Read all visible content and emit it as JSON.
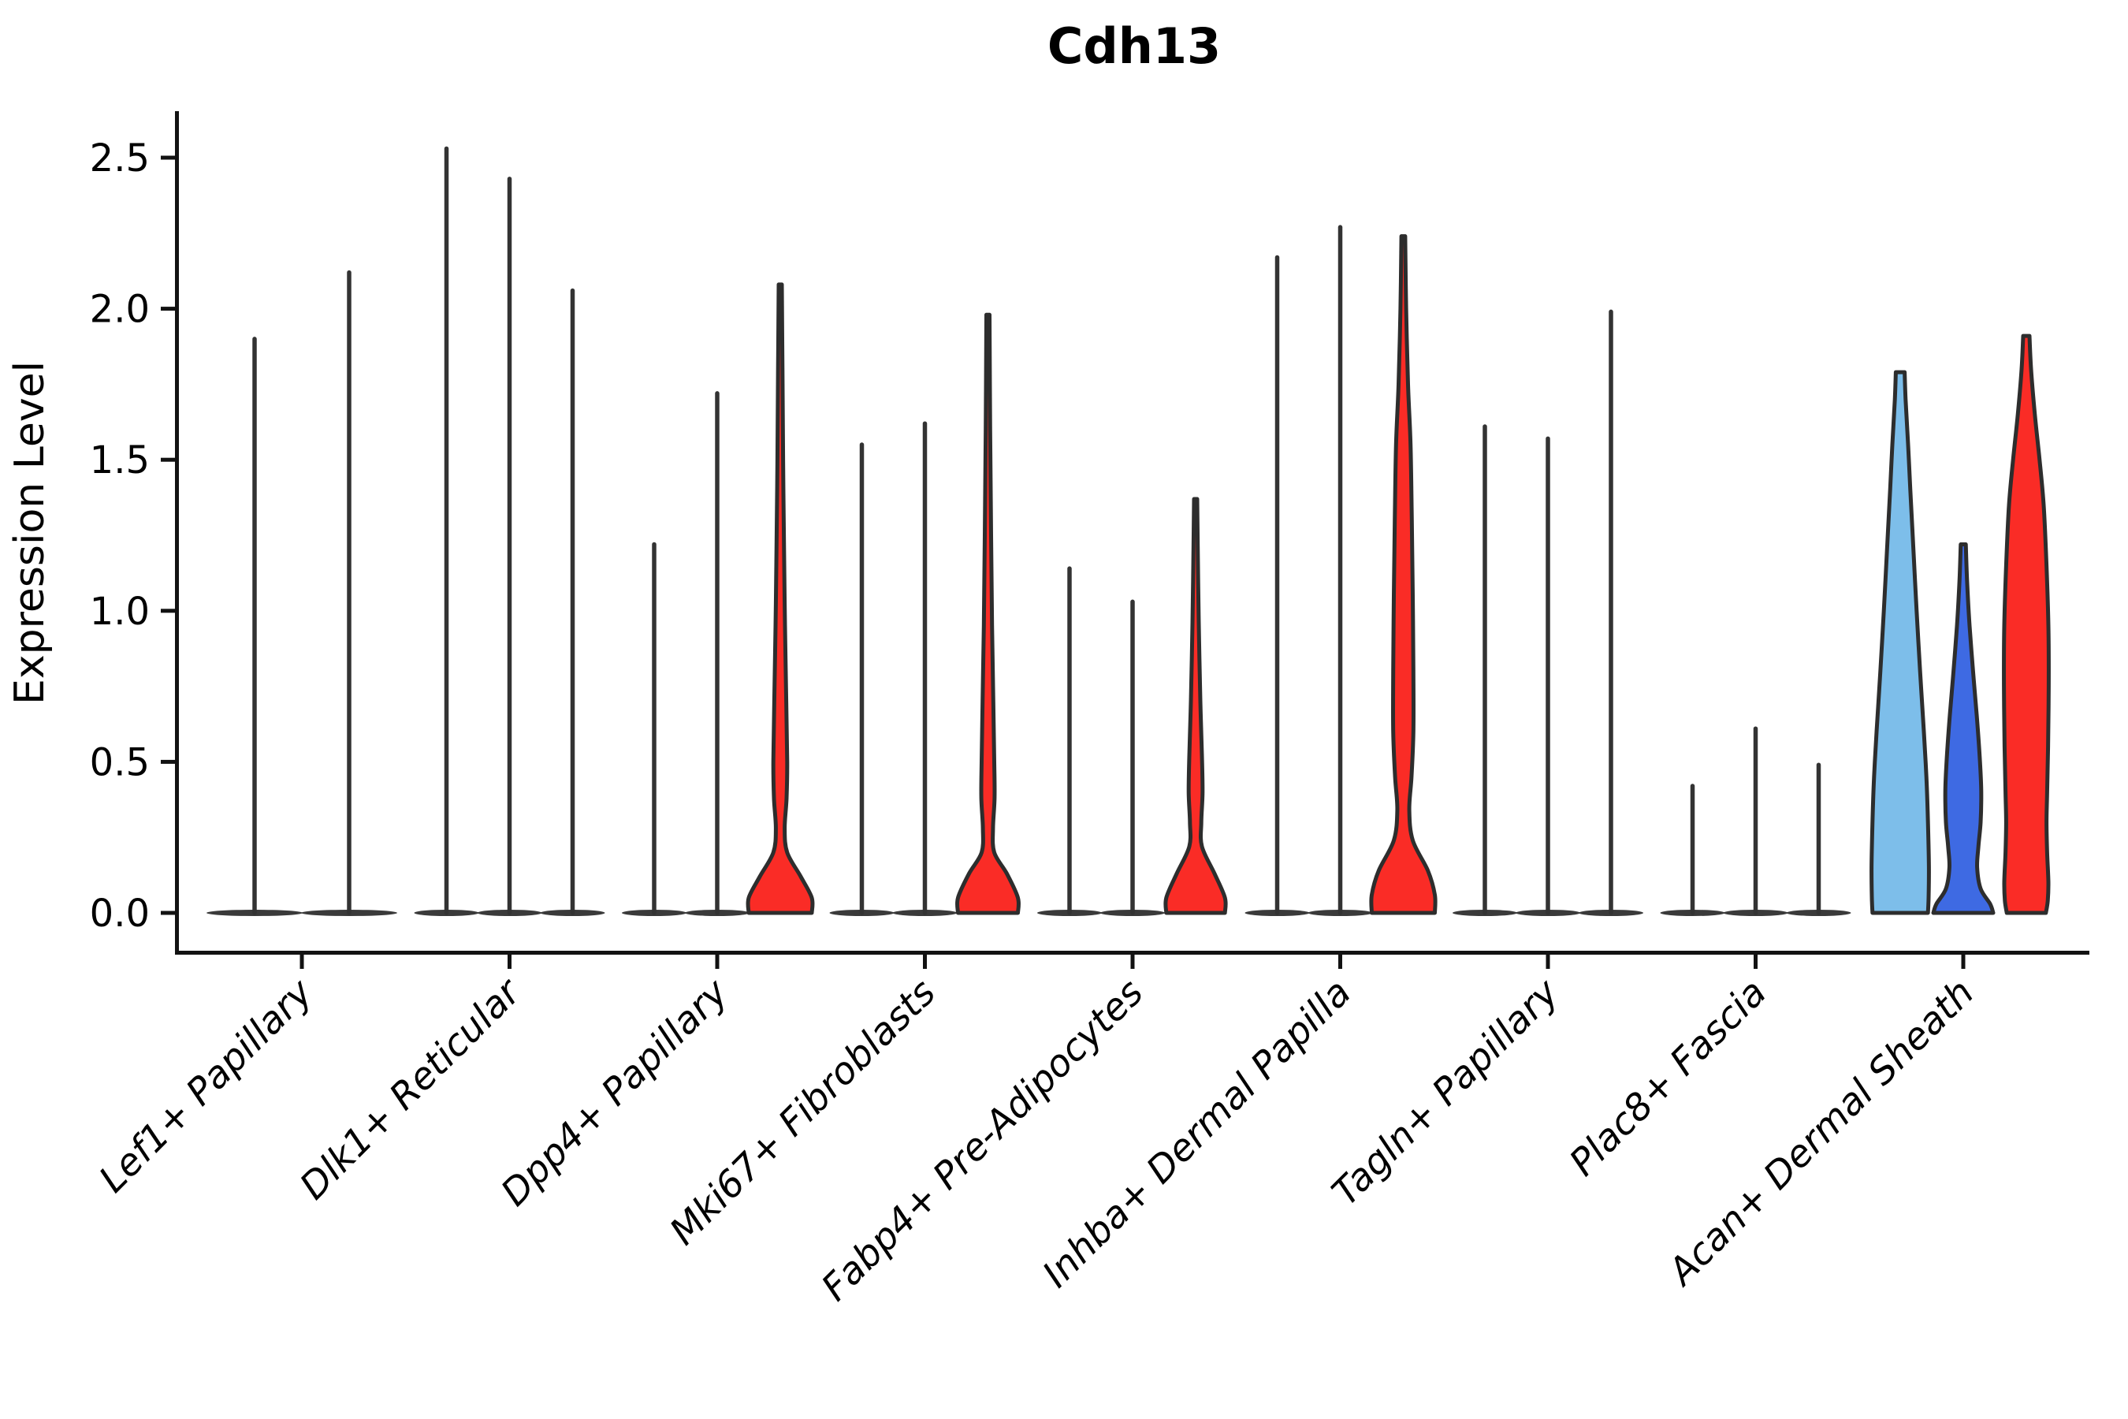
{
  "colors": {
    "red": "#FA2C26",
    "light_blue": "#7DBEEA",
    "dark_blue": "#3E6AE3",
    "outline": "#2D2D2D",
    "spike": "#333333",
    "base_lozenge": "#3A3A3A",
    "axis": "#121212"
  },
  "chart_data": {
    "type": "violin",
    "title": "Cdh13",
    "ylabel": "Expression Level",
    "xlabel": "",
    "ylim": [
      0,
      2.66
    ],
    "yticks": [
      0.0,
      0.5,
      1.0,
      1.5,
      2.0,
      2.5
    ],
    "ytick_labels": [
      "0.0",
      "0.5",
      "1.0",
      "1.5",
      "2.0",
      "2.5"
    ],
    "grid": false,
    "legend": "none",
    "categories": [
      "Lef1+ Papillary",
      "Dlk1+ Reticular",
      "Dpp4+ Papillary",
      "Mki67+ Fibroblasts",
      "Fabp4+ Pre-Adipocytes",
      "Inhba+ Dermal Papilla",
      "Tagln+ Papillary",
      "Plac8+ Fascia",
      "Acan+ Dermal Sheath"
    ],
    "groups": [
      {
        "category": "Lef1+ Papillary",
        "violins": [
          {
            "max": 1.9,
            "style": "spike",
            "color": "spike"
          },
          {
            "max": 2.12,
            "style": "spike",
            "color": "spike"
          }
        ]
      },
      {
        "category": "Dlk1+ Reticular",
        "violins": [
          {
            "max": 2.53,
            "style": "spike",
            "color": "spike"
          },
          {
            "max": 2.43,
            "style": "spike",
            "color": "spike"
          },
          {
            "max": 2.06,
            "style": "spike",
            "color": "spike"
          }
        ]
      },
      {
        "category": "Dpp4+ Papillary",
        "violins": [
          {
            "max": 1.22,
            "style": "spike",
            "color": "spike"
          },
          {
            "max": 1.72,
            "style": "spike",
            "color": "spike"
          },
          {
            "max": 2.08,
            "style": "filled",
            "color": "red",
            "profile": [
              [
                2.08,
                0.05
              ],
              [
                1.8,
                0.07
              ],
              [
                1.5,
                0.09
              ],
              [
                1.2,
                0.12
              ],
              [
                0.95,
                0.15
              ],
              [
                0.7,
                0.19
              ],
              [
                0.5,
                0.22
              ],
              [
                0.38,
                0.2
              ],
              [
                0.28,
                0.14
              ],
              [
                0.2,
                0.22
              ],
              [
                0.12,
                0.65
              ],
              [
                0.05,
                1.0
              ],
              [
                0,
                1.0
              ]
            ]
          }
        ]
      },
      {
        "category": "Mki67+ Fibroblasts",
        "violins": [
          {
            "max": 1.55,
            "style": "spike",
            "color": "spike"
          },
          {
            "max": 1.62,
            "style": "spike",
            "color": "spike"
          },
          {
            "max": 1.98,
            "style": "filled",
            "color": "red",
            "profile": [
              [
                1.98,
                0.05
              ],
              [
                1.6,
                0.07
              ],
              [
                1.25,
                0.1
              ],
              [
                0.95,
                0.13
              ],
              [
                0.7,
                0.17
              ],
              [
                0.5,
                0.2
              ],
              [
                0.38,
                0.21
              ],
              [
                0.28,
                0.16
              ],
              [
                0.2,
                0.2
              ],
              [
                0.13,
                0.6
              ],
              [
                0.05,
                0.95
              ],
              [
                0,
                0.95
              ]
            ]
          }
        ]
      },
      {
        "category": "Fabp4+ Pre-Adipocytes",
        "violins": [
          {
            "max": 1.14,
            "style": "spike",
            "color": "spike"
          },
          {
            "max": 1.03,
            "style": "spike",
            "color": "spike"
          },
          {
            "max": 1.37,
            "style": "filled",
            "color": "red",
            "profile": [
              [
                1.37,
                0.05
              ],
              [
                1.1,
                0.08
              ],
              [
                0.9,
                0.11
              ],
              [
                0.7,
                0.15
              ],
              [
                0.52,
                0.2
              ],
              [
                0.4,
                0.22
              ],
              [
                0.3,
                0.18
              ],
              [
                0.22,
                0.2
              ],
              [
                0.13,
                0.6
              ],
              [
                0.05,
                0.93
              ],
              [
                0,
                0.93
              ]
            ]
          }
        ]
      },
      {
        "category": "Inhba+ Dermal Papilla",
        "violins": [
          {
            "max": 2.17,
            "style": "spike",
            "color": "spike"
          },
          {
            "max": 2.27,
            "style": "spike",
            "color": "spike"
          },
          {
            "max": 2.24,
            "style": "filled",
            "color": "red",
            "profile": [
              [
                2.24,
                0.06
              ],
              [
                2.0,
                0.09
              ],
              [
                1.75,
                0.15
              ],
              [
                1.55,
                0.23
              ],
              [
                1.3,
                0.27
              ],
              [
                1.05,
                0.3
              ],
              [
                0.8,
                0.32
              ],
              [
                0.6,
                0.32
              ],
              [
                0.45,
                0.26
              ],
              [
                0.34,
                0.19
              ],
              [
                0.24,
                0.3
              ],
              [
                0.14,
                0.78
              ],
              [
                0.06,
                1.0
              ],
              [
                0,
                1.0
              ]
            ]
          }
        ]
      },
      {
        "category": "Tagln+ Papillary",
        "violins": [
          {
            "max": 1.61,
            "style": "spike",
            "color": "spike"
          },
          {
            "max": 1.57,
            "style": "spike",
            "color": "spike"
          },
          {
            "max": 1.99,
            "style": "spike",
            "color": "spike"
          }
        ]
      },
      {
        "category": "Plac8+ Fascia",
        "violins": [
          {
            "max": 0.42,
            "style": "spike",
            "color": "spike"
          },
          {
            "max": 0.61,
            "style": "spike",
            "color": "spike"
          },
          {
            "max": 0.49,
            "style": "spike",
            "color": "spike"
          }
        ]
      },
      {
        "category": "Acan+ Dermal Sheath",
        "violins": [
          {
            "max": 1.79,
            "style": "filled",
            "color": "light_blue",
            "profile": [
              [
                1.79,
                0.14
              ],
              [
                1.7,
                0.17
              ],
              [
                1.55,
                0.25
              ],
              [
                1.4,
                0.32
              ],
              [
                1.2,
                0.42
              ],
              [
                1.0,
                0.52
              ],
              [
                0.8,
                0.63
              ],
              [
                0.6,
                0.75
              ],
              [
                0.45,
                0.83
              ],
              [
                0.3,
                0.88
              ],
              [
                0.15,
                0.91
              ],
              [
                0.05,
                0.9
              ],
              [
                0,
                0.88
              ]
            ]
          },
          {
            "max": 1.22,
            "style": "filled",
            "color": "dark_blue",
            "profile": [
              [
                1.22,
                0.08
              ],
              [
                1.1,
                0.12
              ],
              [
                0.95,
                0.2
              ],
              [
                0.8,
                0.31
              ],
              [
                0.65,
                0.43
              ],
              [
                0.5,
                0.53
              ],
              [
                0.4,
                0.57
              ],
              [
                0.3,
                0.55
              ],
              [
                0.22,
                0.48
              ],
              [
                0.15,
                0.44
              ],
              [
                0.08,
                0.55
              ],
              [
                0.03,
                0.85
              ],
              [
                0,
                0.95
              ]
            ]
          },
          {
            "max": 1.91,
            "style": "filled",
            "color": "red",
            "profile": [
              [
                1.91,
                0.1
              ],
              [
                1.8,
                0.15
              ],
              [
                1.65,
                0.27
              ],
              [
                1.5,
                0.42
              ],
              [
                1.35,
                0.55
              ],
              [
                1.15,
                0.64
              ],
              [
                0.95,
                0.7
              ],
              [
                0.75,
                0.71
              ],
              [
                0.55,
                0.69
              ],
              [
                0.4,
                0.66
              ],
              [
                0.3,
                0.64
              ],
              [
                0.2,
                0.66
              ],
              [
                0.1,
                0.7
              ],
              [
                0.04,
                0.68
              ],
              [
                0,
                0.62
              ]
            ]
          }
        ]
      }
    ]
  }
}
